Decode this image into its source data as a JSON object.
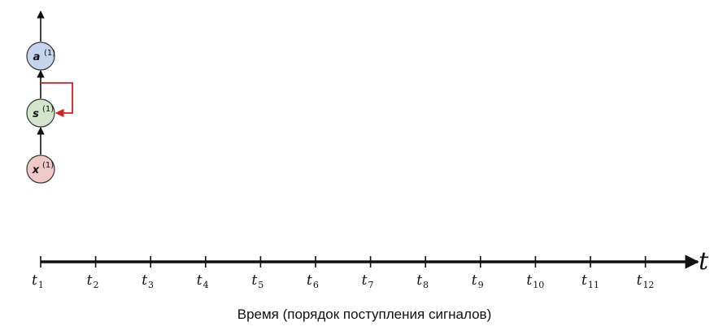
{
  "nodes": {
    "output": {
      "var": "a",
      "sup": "(1)",
      "fill": "#c5d5ee"
    },
    "state": {
      "var": "s",
      "sup": "(1)",
      "fill": "#d3e6cd"
    },
    "input": {
      "var": "x",
      "sup": "(1)",
      "fill": "#f0c8c8"
    }
  },
  "colors": {
    "recurrent_link": "#d42020",
    "axis": "#111111"
  },
  "axis": {
    "symbol": "t",
    "tick_base": "t",
    "tick_subscripts": [
      "1",
      "2",
      "3",
      "4",
      "5",
      "6",
      "7",
      "8",
      "9",
      "10",
      "11",
      "12"
    ]
  },
  "caption": "Время (порядок поступления сигналов)"
}
